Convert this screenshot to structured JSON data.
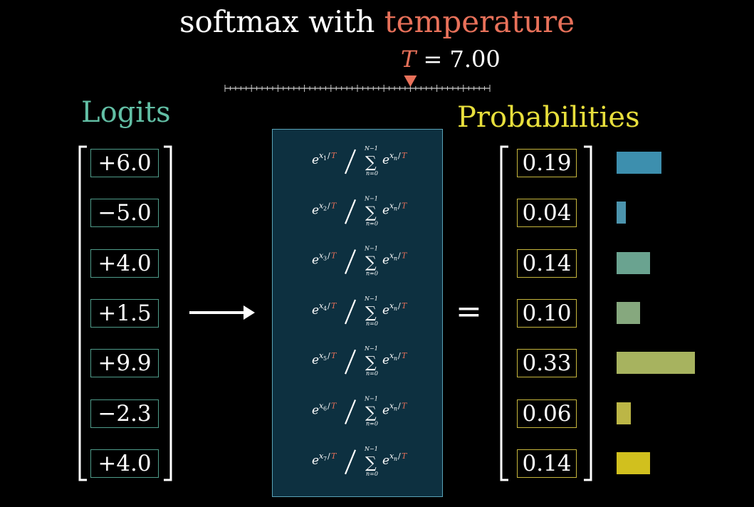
{
  "title": {
    "prefix": "softmax with",
    "highlight": "temperature"
  },
  "temperature": {
    "symbol": "T",
    "equals": "=",
    "value": "7.00",
    "slider_position": 0.7
  },
  "logits": {
    "label": "Logits",
    "values": [
      "+6.0",
      "−5.0",
      "+4.0",
      "+1.5",
      "+9.9",
      "−2.3",
      "+4.0"
    ]
  },
  "probabilities": {
    "label": "Probabilities",
    "values": [
      "0.19",
      "0.04",
      "0.14",
      "0.10",
      "0.33",
      "0.06",
      "0.14"
    ],
    "bar_values": [
      0.19,
      0.04,
      0.14,
      0.1,
      0.33,
      0.06,
      0.14
    ],
    "bar_colors": [
      "#3d8fae",
      "#4c94ad",
      "#6aa390",
      "#86a87e",
      "#a7b35f",
      "#bcb646",
      "#d1c01e"
    ]
  },
  "formula": {
    "base": "e",
    "numerator_var": "x",
    "indices": [
      "1",
      "2",
      "3",
      "4",
      "5",
      "6",
      "7"
    ],
    "divider": "/",
    "temp_symbol": "T",
    "sum_symbol": "∑",
    "upper_limit": "N−1",
    "lower_limit": "n=0",
    "summand_var": "x",
    "summand_index": "n"
  },
  "equals_sign": "="
}
